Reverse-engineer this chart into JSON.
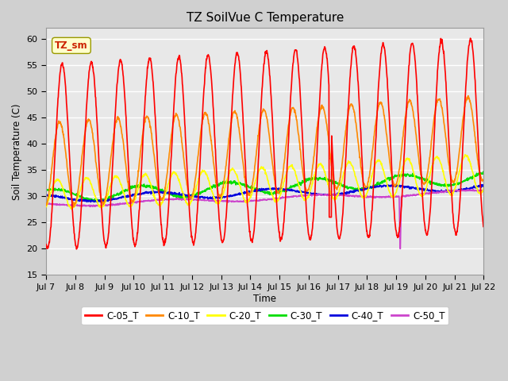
{
  "title": "TZ SoilVue C Temperature",
  "ylabel": "Soil Temperature (C)",
  "xlabel": "Time",
  "annotation": "TZ_sm",
  "ylim": [
    15,
    62
  ],
  "yticks": [
    15,
    20,
    25,
    30,
    35,
    40,
    45,
    50,
    55,
    60
  ],
  "x_labels": [
    "Jul 7",
    "Jul 8",
    "Jul 9",
    "Jul 10",
    "Jul 11",
    "Jul 12",
    "Jul 13",
    "Jul 14",
    "Jul 15",
    "Jul 16",
    "Jul 17",
    "Jul 18",
    "Jul 19",
    "Jul 20",
    "Jul 21",
    "Jul 22"
  ],
  "colors": {
    "C-05_T": "#ff0000",
    "C-10_T": "#ff8800",
    "C-20_T": "#ffff00",
    "C-30_T": "#00dd00",
    "C-40_T": "#0000dd",
    "C-50_T": "#cc44cc"
  },
  "fig_bg": "#d0d0d0",
  "plot_bg": "#e8e8e8",
  "grid_color": "#ffffff"
}
